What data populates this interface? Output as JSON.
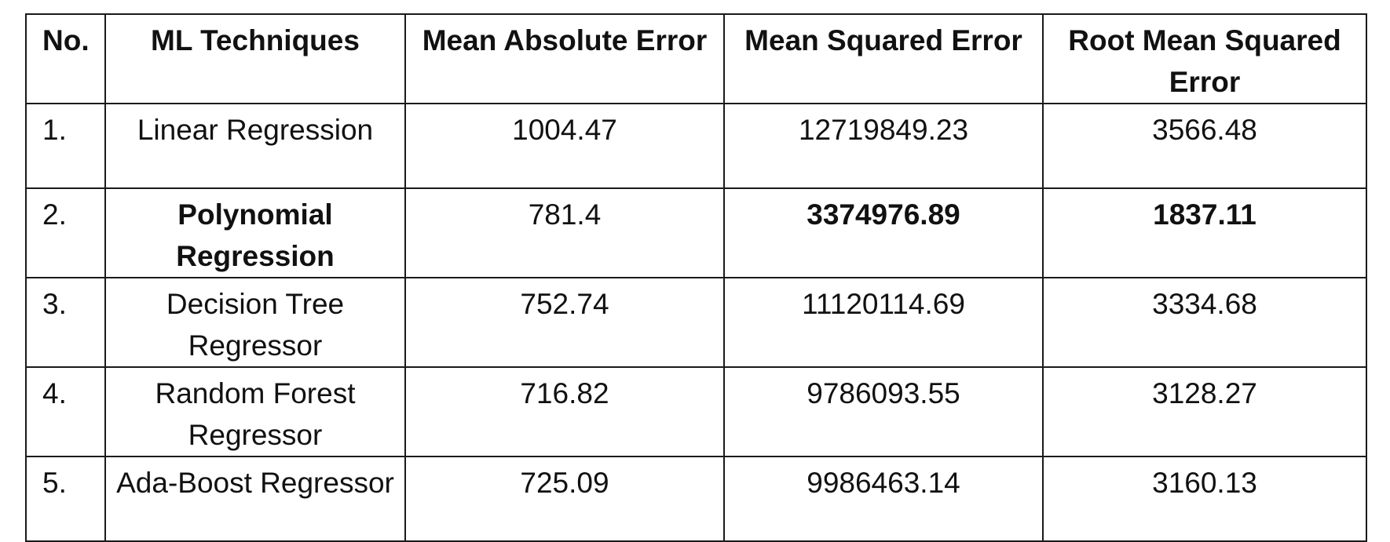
{
  "table": {
    "headers": [
      "No.",
      "ML Techniques",
      "Mean Absolute Error",
      "Mean Squared Error",
      "Root Mean Squared Error"
    ],
    "rows": [
      {
        "no": "1.",
        "technique": "Linear Regression",
        "mae": "1004.47",
        "mse": "12719849.23",
        "rmse": "3566.48"
      },
      {
        "no": "2.",
        "technique": "Polynomial Regression",
        "mae": "781.4",
        "mse": "3374976.89",
        "rmse": "1837.11"
      },
      {
        "no": "3.",
        "technique": "Decision Tree Regressor",
        "mae": "752.74",
        "mse": "11120114.69",
        "rmse": "3334.68"
      },
      {
        "no": "4.",
        "technique": "Random Forest Regressor",
        "mae": "716.82",
        "mse": "9786093.55",
        "rmse": "3128.27"
      },
      {
        "no": "5.",
        "technique": "Ada-Boost Regressor",
        "mae": "725.09",
        "mse": "9986463.14",
        "rmse": "3160.13"
      }
    ]
  }
}
